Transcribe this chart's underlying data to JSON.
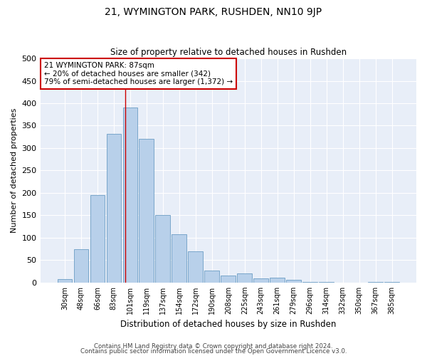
{
  "title": "21, WYMINGTON PARK, RUSHDEN, NN10 9JP",
  "subtitle": "Size of property relative to detached houses in Rushden",
  "xlabel": "Distribution of detached houses by size in Rushden",
  "ylabel": "Number of detached properties",
  "footer_line1": "Contains HM Land Registry data © Crown copyright and database right 2024.",
  "footer_line2": "Contains public sector information licensed under the Open Government Licence v3.0.",
  "categories": [
    "30sqm",
    "48sqm",
    "66sqm",
    "83sqm",
    "101sqm",
    "119sqm",
    "137sqm",
    "154sqm",
    "172sqm",
    "190sqm",
    "208sqm",
    "225sqm",
    "243sqm",
    "261sqm",
    "279sqm",
    "296sqm",
    "314sqm",
    "332sqm",
    "350sqm",
    "367sqm",
    "385sqm"
  ],
  "values": [
    8,
    75,
    195,
    332,
    390,
    320,
    150,
    108,
    70,
    27,
    15,
    20,
    9,
    11,
    6,
    2,
    1,
    0,
    0,
    1,
    1
  ],
  "bar_color": "#b8d0ea",
  "bar_edge_color": "#6b9dc4",
  "bg_color": "#e8eef8",
  "grid_color": "#ffffff",
  "annotation_line1": "21 WYMINGTON PARK: 87sqm",
  "annotation_line2": "← 20% of detached houses are smaller (342)",
  "annotation_line3": "79% of semi-detached houses are larger (1,372) →",
  "vline_x": 3.72,
  "vline_color": "#cc0000",
  "ylim": [
    0,
    500
  ],
  "yticks": [
    0,
    50,
    100,
    150,
    200,
    250,
    300,
    350,
    400,
    450,
    500
  ]
}
